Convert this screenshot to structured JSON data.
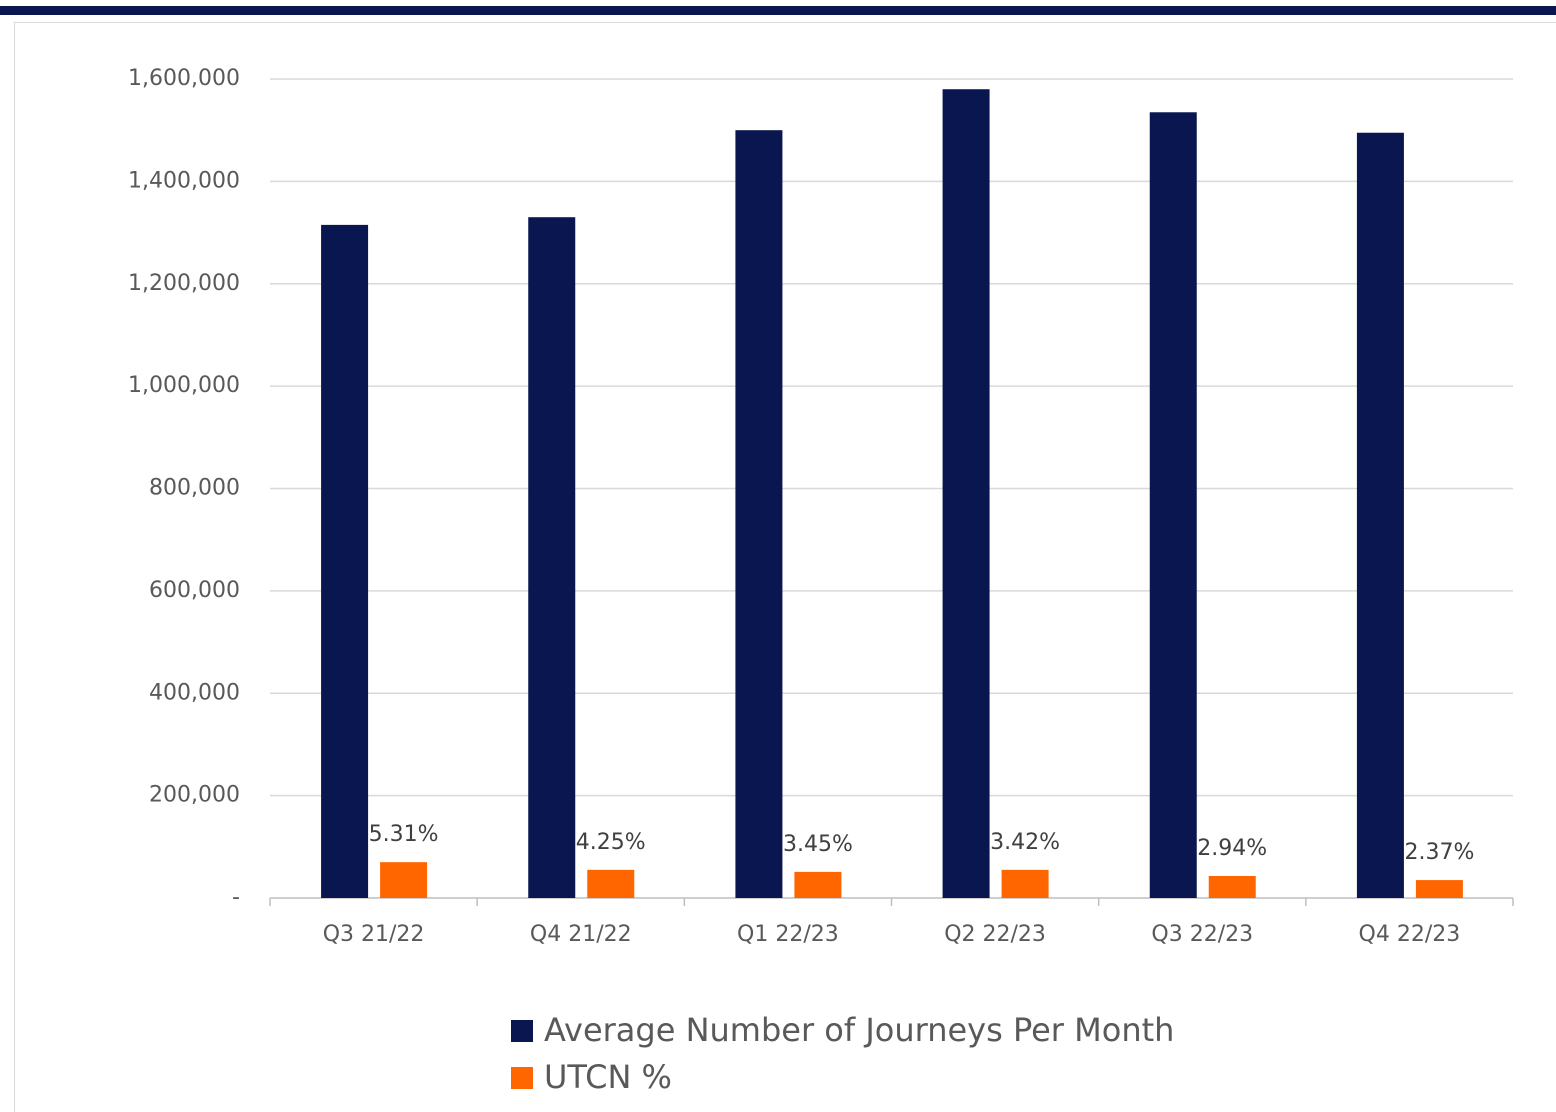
{
  "chart_data": {
    "type": "bar",
    "categories": [
      "Q3 21/22",
      "Q4 21/22",
      "Q1 22/23",
      "Q2 22/23",
      "Q3 22/23",
      "Q4 22/23"
    ],
    "series": [
      {
        "name": "Average Number of Journeys Per Month",
        "color": "#0a1650",
        "values": [
          1315000,
          1330000,
          1500000,
          1580000,
          1535000,
          1495000
        ]
      },
      {
        "name": "UTCN %",
        "color": "#ff6600",
        "values": [
          70000,
          55000,
          51000,
          55000,
          43000,
          35000
        ]
      }
    ],
    "annotations": [
      "5.31%",
      "4.25%",
      "3.45%",
      "3.42%",
      "2.94%",
      "2.37%"
    ],
    "ylim": [
      0,
      1600000
    ],
    "yticks": [
      {
        "value": 0,
        "label": "-"
      },
      {
        "value": 200000,
        "label": "200,000"
      },
      {
        "value": 400000,
        "label": "400,000"
      },
      {
        "value": 600000,
        "label": "600,000"
      },
      {
        "value": 800000,
        "label": "800,000"
      },
      {
        "value": 1000000,
        "label": "1,000,000"
      },
      {
        "value": 1200000,
        "label": "1,200,000"
      },
      {
        "value": 1400000,
        "label": "1,400,000"
      },
      {
        "value": 1600000,
        "label": "1,600,000"
      }
    ],
    "grid": true,
    "legend": "bottom"
  }
}
